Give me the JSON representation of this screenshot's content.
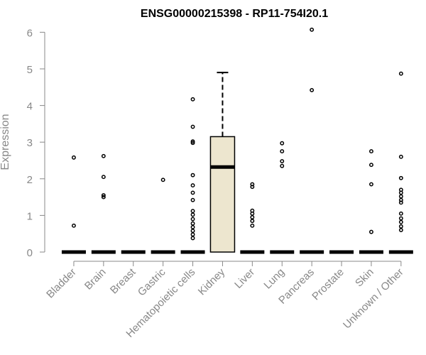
{
  "chart_data": {
    "type": "box",
    "title": "ENSG00000215398 - RP11-754I20.1",
    "xlabel": "",
    "ylabel": "Expression",
    "ylim": [
      0,
      6
    ],
    "yticks": [
      0,
      1,
      2,
      3,
      4,
      5,
      6
    ],
    "categories": [
      "Bladder",
      "Brain",
      "Breast",
      "Gastric",
      "Hematopoietic cells",
      "Kidney",
      "Liver",
      "Lung",
      "Pancreas",
      "Prostate",
      "Skin",
      "Unknown / Other"
    ],
    "box_fill": "#ede6cf",
    "boxes": [
      {
        "min": 0,
        "q1": 0,
        "median": 0,
        "q3": 0,
        "max": 0,
        "outliers": [
          0.72,
          2.58
        ]
      },
      {
        "min": 0,
        "q1": 0,
        "median": 0,
        "q3": 0,
        "max": 0,
        "outliers": [
          1.5,
          1.55,
          2.05,
          2.62
        ]
      },
      {
        "min": 0,
        "q1": 0,
        "median": 0,
        "q3": 0,
        "max": 0,
        "outliers": []
      },
      {
        "min": 0,
        "q1": 0,
        "median": 0,
        "q3": 0,
        "max": 0,
        "outliers": [
          1.97
        ]
      },
      {
        "min": 0,
        "q1": 0,
        "median": 0,
        "q3": 0,
        "max": 0,
        "outliers": [
          0.38,
          0.48,
          0.58,
          0.68,
          0.78,
          0.9,
          1.02,
          1.12,
          1.42,
          1.62,
          1.82,
          2.1,
          2.98,
          3.02,
          3.42,
          4.17
        ]
      },
      {
        "min": 0,
        "q1": 0,
        "median": 2.32,
        "q3": 3.15,
        "max": 4.9,
        "outliers": []
      },
      {
        "min": 0,
        "q1": 0,
        "median": 0,
        "q3": 0,
        "max": 0,
        "outliers": [
          0.72,
          0.85,
          0.95,
          1.05,
          1.13,
          1.78,
          1.85
        ]
      },
      {
        "min": 0,
        "q1": 0,
        "median": 0,
        "q3": 0,
        "max": 0,
        "outliers": [
          2.35,
          2.48,
          2.75,
          2.97
        ]
      },
      {
        "min": 0,
        "q1": 0,
        "median": 0,
        "q3": 0,
        "max": 0,
        "outliers": [
          4.42,
          6.07
        ]
      },
      {
        "min": 0,
        "q1": 0,
        "median": 0,
        "q3": 0,
        "max": 0,
        "outliers": []
      },
      {
        "min": 0,
        "q1": 0,
        "median": 0,
        "q3": 0,
        "max": 0,
        "outliers": [
          0.55,
          1.85,
          2.38,
          2.75
        ]
      },
      {
        "min": 0,
        "q1": 0,
        "median": 0,
        "q3": 0,
        "max": 0,
        "outliers": [
          0.6,
          0.7,
          0.82,
          0.92,
          1.05,
          1.35,
          1.42,
          1.52,
          1.62,
          1.7,
          2.02,
          2.6,
          4.87
        ]
      }
    ]
  }
}
